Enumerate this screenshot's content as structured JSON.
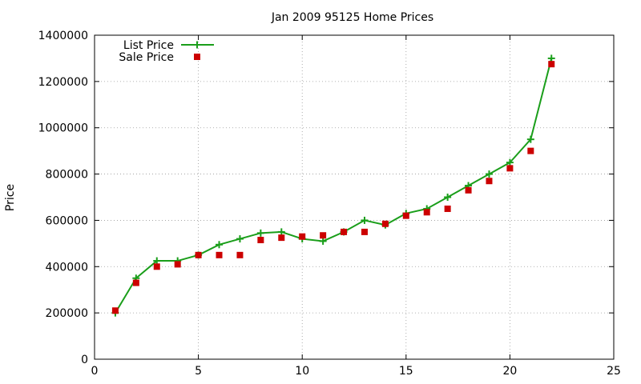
{
  "chart_data": {
    "type": "line",
    "title": "Jan 2009 95125 Home Prices",
    "xlabel": "",
    "ylabel": "Price",
    "xlim": [
      0,
      25
    ],
    "ylim": [
      0,
      1400000
    ],
    "xticks": [
      0,
      5,
      10,
      15,
      20,
      25
    ],
    "yticks": [
      0,
      200000,
      400000,
      600000,
      800000,
      1000000,
      1200000,
      1400000
    ],
    "grid": true,
    "legend_position": "top-left",
    "series": [
      {
        "name": "List Price",
        "style": "line-points",
        "marker": "plus",
        "color": "#1a9e1a",
        "x": [
          1,
          2,
          3,
          4,
          5,
          6,
          7,
          8,
          9,
          10,
          11,
          12,
          13,
          14,
          15,
          16,
          17,
          18,
          19,
          20,
          21,
          22
        ],
        "values": [
          200000,
          350000,
          425000,
          425000,
          450000,
          495000,
          520000,
          545000,
          550000,
          520000,
          510000,
          550000,
          600000,
          580000,
          630000,
          650000,
          700000,
          750000,
          800000,
          850000,
          950000,
          1300000
        ]
      },
      {
        "name": "Sale Price",
        "style": "points",
        "marker": "square",
        "color": "#cc0000",
        "x": [
          1,
          2,
          3,
          4,
          5,
          6,
          7,
          8,
          9,
          10,
          11,
          12,
          13,
          14,
          15,
          16,
          17,
          18,
          19,
          20,
          21,
          22
        ],
        "values": [
          210000,
          330000,
          400000,
          410000,
          450000,
          450000,
          450000,
          515000,
          525000,
          530000,
          535000,
          550000,
          550000,
          585000,
          620000,
          635000,
          650000,
          730000,
          770000,
          825000,
          900000,
          1275000
        ]
      }
    ]
  }
}
